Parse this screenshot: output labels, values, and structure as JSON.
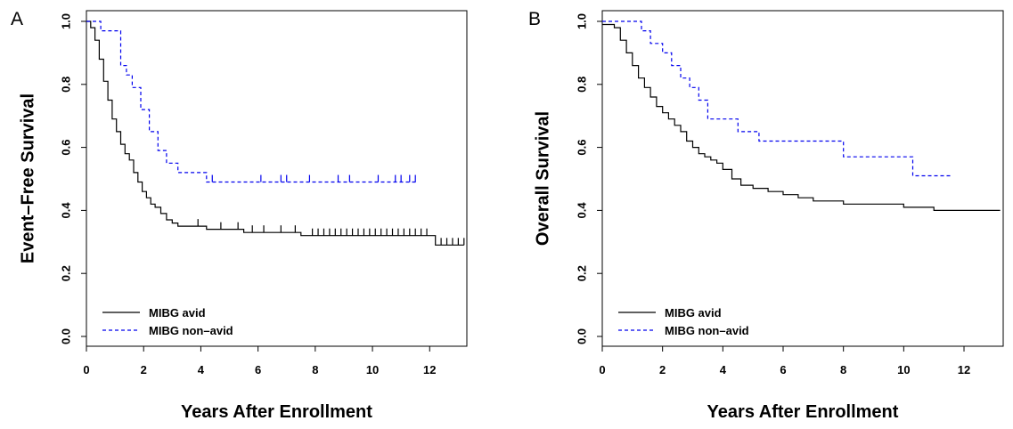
{
  "chart_data": [
    {
      "type": "line",
      "panel_label": "A",
      "xlabel": "Years After Enrollment",
      "ylabel": "Event–Free Survival",
      "xlim": [
        0,
        13.3
      ],
      "ylim": [
        0,
        1
      ],
      "xticks": [
        "0",
        "2",
        "4",
        "6",
        "8",
        "10",
        "12"
      ],
      "yticks": [
        "0.0",
        "0.2",
        "0.4",
        "0.6",
        "0.8",
        "1.0"
      ],
      "legend_position": "bottom-left",
      "series": [
        {
          "name": "MIBG avid",
          "color": "#000000",
          "dash": "solid",
          "x": [
            0,
            0.15,
            0.3,
            0.45,
            0.6,
            0.75,
            0.9,
            1.05,
            1.2,
            1.35,
            1.5,
            1.65,
            1.8,
            1.95,
            2.1,
            2.25,
            2.4,
            2.6,
            2.8,
            3.0,
            3.2,
            3.5,
            3.8,
            4.2,
            4.6,
            5.0,
            5.5,
            6.0,
            6.5,
            7.0,
            7.5,
            8.0,
            9.0,
            10.0,
            11.0,
            12.0,
            12.2,
            13.2
          ],
          "y": [
            1.0,
            0.98,
            0.94,
            0.88,
            0.81,
            0.75,
            0.69,
            0.65,
            0.61,
            0.58,
            0.56,
            0.52,
            0.49,
            0.46,
            0.44,
            0.42,
            0.41,
            0.39,
            0.37,
            0.36,
            0.35,
            0.35,
            0.35,
            0.34,
            0.34,
            0.34,
            0.33,
            0.33,
            0.33,
            0.33,
            0.32,
            0.32,
            0.32,
            0.32,
            0.32,
            0.32,
            0.29,
            0.29
          ],
          "censored_x": [
            3.9,
            4.7,
            5.3,
            5.8,
            6.2,
            6.8,
            7.3,
            7.9,
            8.1,
            8.3,
            8.5,
            8.7,
            8.9,
            9.1,
            9.3,
            9.5,
            9.7,
            9.9,
            10.1,
            10.3,
            10.5,
            10.7,
            10.9,
            11.1,
            11.3,
            11.5,
            11.7,
            11.9,
            12.4,
            12.6,
            12.8,
            13.0,
            13.2
          ]
        },
        {
          "name": "MIBG non–avid",
          "color": "#0000ee",
          "dash": "dashed",
          "x": [
            0,
            0.5,
            0.8,
            1.2,
            1.4,
            1.6,
            1.9,
            2.2,
            2.5,
            2.8,
            3.2,
            4.2,
            11.6
          ],
          "y": [
            1.0,
            0.97,
            0.97,
            0.86,
            0.83,
            0.79,
            0.72,
            0.65,
            0.59,
            0.55,
            0.52,
            0.49,
            0.49
          ],
          "censored_x": [
            4.4,
            6.1,
            6.8,
            7.0,
            7.8,
            8.8,
            9.2,
            10.2,
            10.8,
            11.0,
            11.3,
            11.5
          ]
        }
      ]
    },
    {
      "type": "line",
      "panel_label": "B",
      "xlabel": "Years After Enrollment",
      "ylabel": "Overall Survival",
      "xlim": [
        0,
        13.3
      ],
      "ylim": [
        0,
        1
      ],
      "xticks": [
        "0",
        "2",
        "4",
        "6",
        "8",
        "10",
        "12"
      ],
      "yticks": [
        "0.0",
        "0.2",
        "0.4",
        "0.6",
        "0.8",
        "1.0"
      ],
      "legend_position": "bottom-left",
      "series": [
        {
          "name": "MIBG avid",
          "color": "#000000",
          "dash": "solid",
          "x": [
            0,
            0.4,
            0.6,
            0.8,
            1.0,
            1.2,
            1.4,
            1.6,
            1.8,
            2.0,
            2.2,
            2.4,
            2.6,
            2.8,
            3.0,
            3.2,
            3.4,
            3.6,
            3.8,
            4.0,
            4.3,
            4.6,
            5.0,
            5.5,
            6.0,
            6.5,
            7.0,
            8.0,
            9.0,
            10.0,
            11.0,
            12.0,
            13.2
          ],
          "y": [
            0.99,
            0.98,
            0.94,
            0.9,
            0.86,
            0.82,
            0.79,
            0.76,
            0.73,
            0.71,
            0.69,
            0.67,
            0.65,
            0.62,
            0.6,
            0.58,
            0.57,
            0.56,
            0.55,
            0.53,
            0.5,
            0.48,
            0.47,
            0.46,
            0.45,
            0.44,
            0.43,
            0.42,
            0.42,
            0.41,
            0.4,
            0.4,
            0.4
          ]
        },
        {
          "name": "MIBG non–avid",
          "color": "#0000ee",
          "dash": "dashed",
          "x": [
            0,
            1.0,
            1.3,
            1.6,
            2.0,
            2.3,
            2.6,
            2.9,
            3.2,
            3.5,
            4.0,
            4.5,
            5.2,
            6.0,
            6.5,
            7.5,
            8.0,
            9.5,
            10.3,
            11.6
          ],
          "y": [
            1.0,
            1.0,
            0.97,
            0.93,
            0.9,
            0.86,
            0.82,
            0.79,
            0.75,
            0.69,
            0.69,
            0.65,
            0.62,
            0.62,
            0.62,
            0.62,
            0.57,
            0.57,
            0.51,
            0.51
          ]
        }
      ]
    }
  ]
}
